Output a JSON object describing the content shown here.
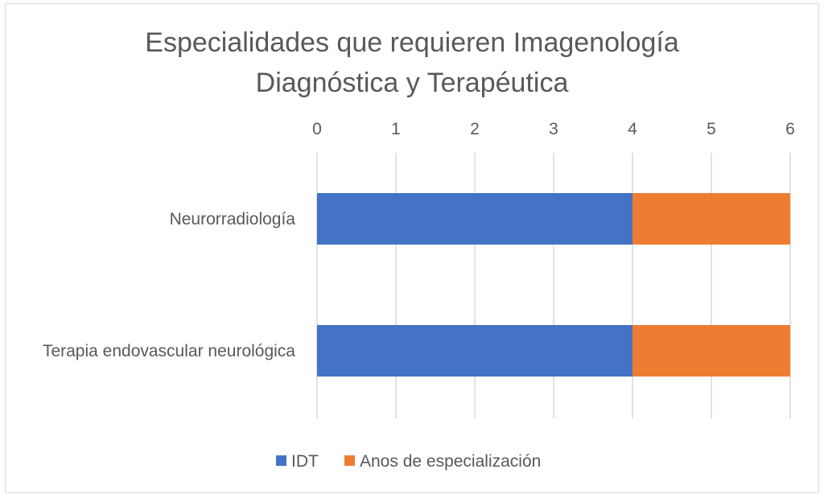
{
  "chart_data": {
    "type": "bar",
    "orientation": "horizontal",
    "stacked": true,
    "title": {
      "line1": "Especialidades que requieren Imagenología",
      "line2": "Diagnóstica y Terapéutica"
    },
    "categories": [
      "Neurorradiología",
      "Terapia endovascular neurológica"
    ],
    "series": [
      {
        "name": "IDT",
        "values": [
          4,
          4
        ],
        "color": "#4472c4"
      },
      {
        "name": "Anos de especialización",
        "values": [
          2,
          2
        ],
        "color": "#ed7d31"
      }
    ],
    "xlim": [
      0,
      6
    ],
    "xticks": [
      "0",
      "1",
      "2",
      "3",
      "4",
      "5",
      "6"
    ],
    "x_axis_position": "top",
    "grid": true,
    "legend_position": "bottom"
  }
}
